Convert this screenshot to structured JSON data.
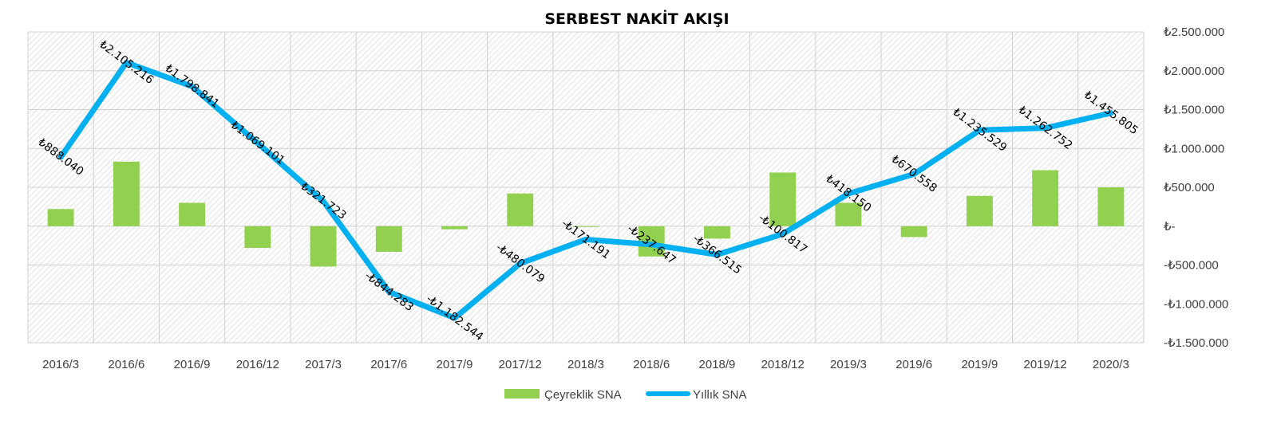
{
  "chart_data": {
    "type": "bar+line",
    "title": "SERBEST NAKİT AKIŞI",
    "categories": [
      "2016/3",
      "2016/6",
      "2016/9",
      "2016/12",
      "2017/3",
      "2017/6",
      "2017/9",
      "2017/12",
      "2018/3",
      "2018/6",
      "2018/9",
      "2018/12",
      "2019/3",
      "2019/6",
      "2019/9",
      "2019/12",
      "2020/3"
    ],
    "series": [
      {
        "name": "Çeyreklik SNA",
        "kind": "bar",
        "color": "#92d050",
        "values": [
          220000,
          830000,
          300000,
          -280000,
          -520000,
          -330000,
          -40000,
          420000,
          -10000,
          -390000,
          -160000,
          690000,
          300000,
          -140000,
          390000,
          720000,
          500000
        ]
      },
      {
        "name": "Yıllık SNA",
        "kind": "line",
        "color": "#00b0f0",
        "values": [
          888040,
          2105216,
          1798841,
          1069101,
          321723,
          -844283,
          -1182544,
          -480079,
          -171191,
          -237647,
          -366515,
          -100817,
          418150,
          670558,
          1235529,
          1262752,
          1455805
        ],
        "labels": [
          "₺888.040",
          "₺2.105.216",
          "₺1.798.841",
          "₺1.069.101",
          "₺321.723",
          "-₺844.283",
          "-₺1.182.544",
          "-₺480.079",
          "-₺171.191",
          "-₺237.647",
          "-₺366.515",
          "-₺100.817",
          "₺418.150",
          "₺670.558",
          "₺1.235.529",
          "₺1.262.752",
          "₺1.455.805"
        ]
      }
    ],
    "y_axis": {
      "position": "right",
      "ylim": [
        -1500000,
        2500000
      ],
      "ticks": [
        2500000,
        2000000,
        1500000,
        1000000,
        500000,
        0,
        -500000,
        -1000000,
        -1500000
      ],
      "tick_labels": [
        "₺2.500.000",
        "₺2.000.000",
        "₺1.500.000",
        "₺1.000.000",
        "₺500.000",
        "₺-",
        "-₺500.000",
        "-₺1.000.000",
        "-₺1.500.000"
      ]
    },
    "grid": true,
    "legend": "bottom-center"
  }
}
